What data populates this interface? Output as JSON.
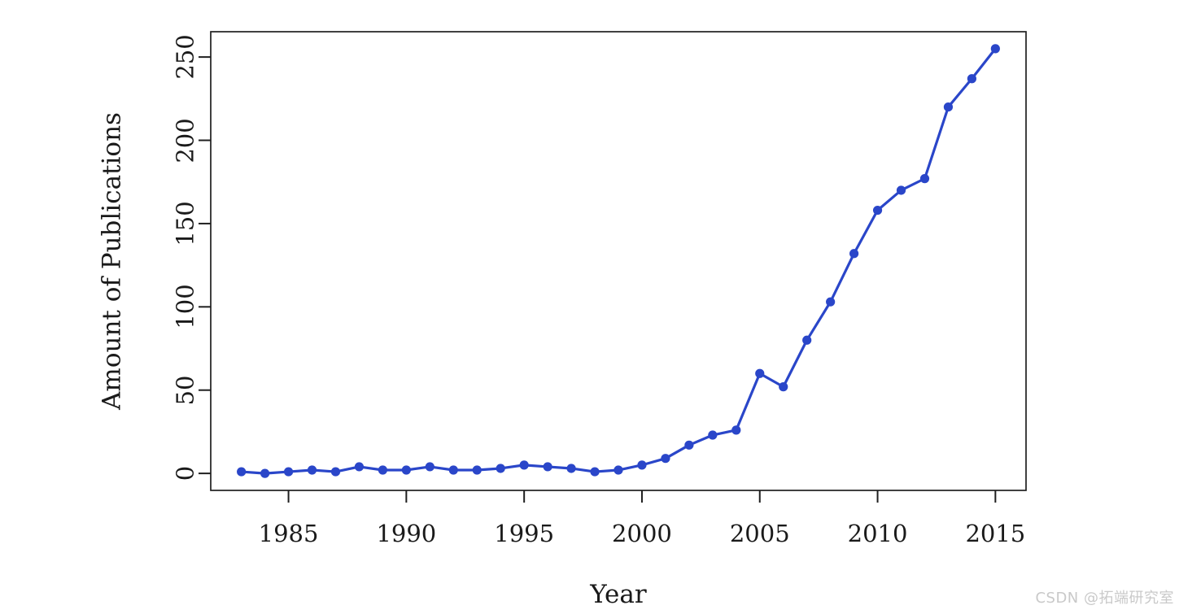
{
  "chart_data": {
    "type": "line",
    "title": "",
    "xlabel": "Year",
    "ylabel": "Amount of Publications",
    "x": [
      1983,
      1984,
      1985,
      1986,
      1987,
      1988,
      1989,
      1990,
      1991,
      1992,
      1993,
      1994,
      1995,
      1996,
      1997,
      1998,
      1999,
      2000,
      2001,
      2002,
      2003,
      2004,
      2005,
      2006,
      2007,
      2008,
      2009,
      2010,
      2011,
      2012,
      2013,
      2014,
      2015
    ],
    "y": [
      1,
      0,
      1,
      2,
      1,
      4,
      2,
      2,
      4,
      2,
      2,
      3,
      5,
      4,
      3,
      1,
      2,
      5,
      9,
      17,
      23,
      26,
      60,
      52,
      80,
      103,
      132,
      158,
      170,
      177,
      220,
      237,
      255
    ],
    "series_name": "Amount of Publications",
    "x_ticks": [
      1985,
      1990,
      1995,
      2000,
      2005,
      2010,
      2015
    ],
    "y_ticks": [
      0,
      50,
      100,
      150,
      200,
      250
    ],
    "xlim": [
      1981.7,
      2016.3
    ],
    "ylim": [
      -10.2,
      265.2
    ],
    "grid": false,
    "legend": false,
    "line_color": "#2a46c9",
    "marker": "circle",
    "axis_color": "#1f1f1f"
  },
  "watermark": {
    "text": "CSDN @拓端研究室",
    "color": "#c9c9c9"
  }
}
